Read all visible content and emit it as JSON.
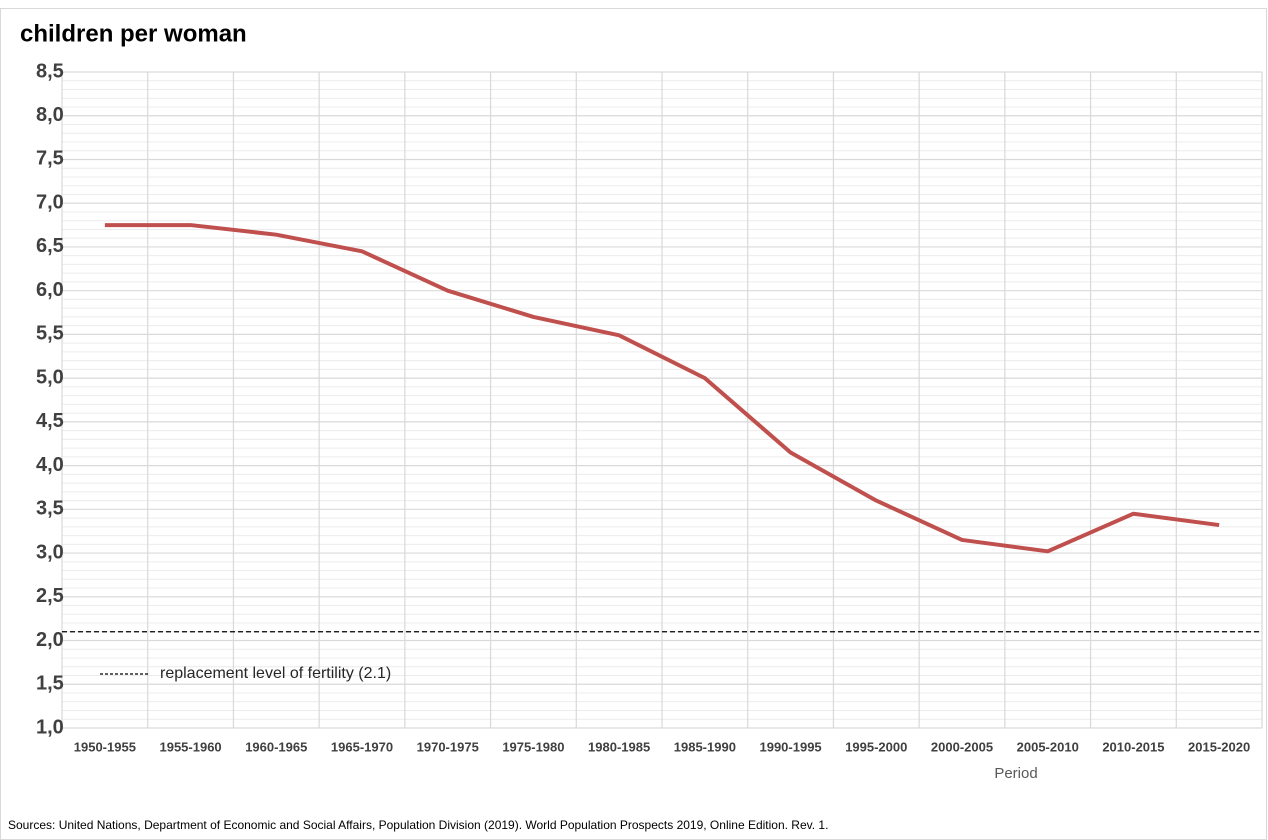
{
  "chart_data": {
    "type": "line",
    "title": "children per woman",
    "x_label": "Period",
    "source": "Sources: United Nations, Department of Economic and Social Affairs, Population Division (2019). World Population Prospects 2019, Online Edition. Rev. 1.",
    "categories": [
      "1950-1955",
      "1955-1960",
      "1960-1965",
      "1965-1970",
      "1970-1975",
      "1975-1980",
      "1980-1985",
      "1985-1990",
      "1990-1995",
      "1995-2000",
      "2000-2005",
      "2005-2010",
      "2010-2015",
      "2015-2020"
    ],
    "series": [
      {
        "name": "children per woman",
        "color": "#c0504d",
        "values": [
          6.75,
          6.75,
          6.64,
          6.45,
          6.0,
          5.7,
          5.49,
          5.0,
          4.15,
          3.6,
          3.15,
          3.02,
          3.45,
          3.32
        ]
      }
    ],
    "reference_line": {
      "value": 2.1,
      "label": "replacement level of fertility (2.1)",
      "color": "#000000"
    },
    "ylim": [
      1.0,
      8.5
    ],
    "yticks": [
      {
        "value": 1.0,
        "label": "1,0"
      },
      {
        "value": 1.5,
        "label": "1,5"
      },
      {
        "value": 2.0,
        "label": "2,0"
      },
      {
        "value": 2.5,
        "label": "2,5"
      },
      {
        "value": 3.0,
        "label": "3,0"
      },
      {
        "value": 3.5,
        "label": "3,5"
      },
      {
        "value": 4.0,
        "label": "4,0"
      },
      {
        "value": 4.5,
        "label": "4,5"
      },
      {
        "value": 5.0,
        "label": "5,0"
      },
      {
        "value": 5.5,
        "label": "5,5"
      },
      {
        "value": 6.0,
        "label": "6,0"
      },
      {
        "value": 6.5,
        "label": "6,5"
      },
      {
        "value": 7.0,
        "label": "7,0"
      },
      {
        "value": 7.5,
        "label": "7,5"
      },
      {
        "value": 8.0,
        "label": "8,0"
      },
      {
        "value": 8.5,
        "label": "8,5"
      }
    ],
    "minor_yticks": [
      1.1,
      1.2,
      1.3,
      1.4,
      1.6,
      1.7,
      1.8,
      1.9,
      2.1,
      2.2,
      2.3,
      2.4,
      2.6,
      2.7,
      2.8,
      2.9,
      3.1,
      3.2,
      3.3,
      3.4,
      3.6,
      3.7,
      3.8,
      3.9,
      4.1,
      4.2,
      4.3,
      4.4,
      4.6,
      4.7,
      4.8,
      4.9,
      5.1,
      5.2,
      5.3,
      5.4,
      5.6,
      5.7,
      5.8,
      5.9,
      6.1,
      6.2,
      6.3,
      6.4,
      6.6,
      6.7,
      6.8,
      6.9,
      7.1,
      7.2,
      7.3,
      7.4,
      7.6,
      7.7,
      7.8,
      7.9,
      8.1,
      8.2,
      8.3,
      8.4
    ],
    "grid": true
  }
}
